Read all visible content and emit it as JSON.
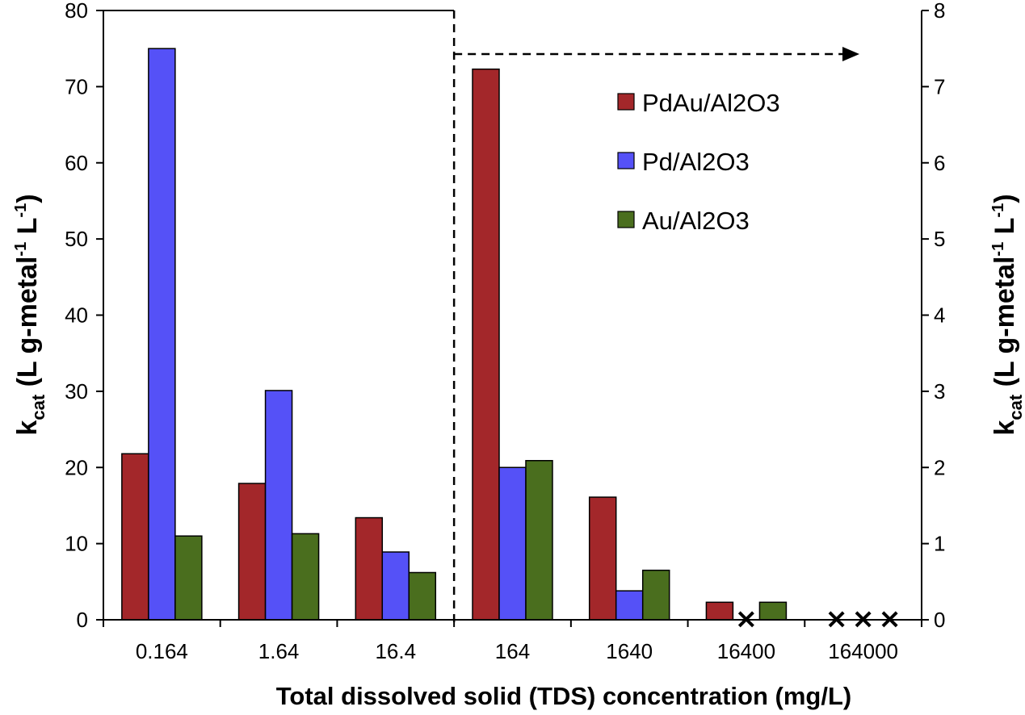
{
  "chart_data": {
    "type": "bar",
    "categories": [
      "0.164",
      "1.64",
      "16.4",
      "164",
      "1640",
      "16400",
      "164000"
    ],
    "series": [
      {
        "name": "PdAu/Al2O3",
        "color": "#A3272A",
        "values": [
          21.8,
          17.9,
          13.4,
          7.23,
          1.61,
          0.23,
          null
        ]
      },
      {
        "name": "Pd/Al2O3",
        "color": "#5551F7",
        "values": [
          75,
          30.1,
          8.9,
          2.0,
          0.38,
          null,
          null
        ]
      },
      {
        "name": "Au/Al2O3",
        "color": "#4A6E1E",
        "values": [
          11,
          11.3,
          6.2,
          2.09,
          0.65,
          0.23,
          null
        ]
      }
    ],
    "left_axis": {
      "ylim": [
        0,
        80
      ],
      "ticks": [
        "0",
        "10",
        "20",
        "30",
        "40",
        "50",
        "60",
        "70",
        "80"
      ],
      "applies_to_categories": [
        "0.164",
        "1.64",
        "16.4"
      ]
    },
    "right_axis": {
      "ylim": [
        0,
        8
      ],
      "ticks": [
        "0",
        "1",
        "2",
        "3",
        "4",
        "5",
        "6",
        "7",
        "8"
      ],
      "applies_to_categories": [
        "164",
        "1640",
        "16400",
        "164000"
      ]
    },
    "not_detected_markers": [
      {
        "category": "16400",
        "series": "Pd/Al2O3",
        "marker": "×"
      },
      {
        "category": "164000",
        "series": "PdAu/Al2O3",
        "marker": "×"
      },
      {
        "category": "164000",
        "series": "Pd/Al2O3",
        "marker": "×"
      },
      {
        "category": "164000",
        "series": "Au/Al2O3",
        "marker": "×"
      }
    ],
    "xlabel": "Total dissolved solid (TDS) concentration (mg/L)",
    "ylabel_main": "k",
    "ylabel_sub": "cat",
    "ylabel_unit": " (L g-metal",
    "ylabel_sup": "-1",
    "ylabel_tail": " L",
    "ylabel_sup2": "-1",
    "ylabel_close": ")",
    "legend_position": "upper-right",
    "grid": false
  }
}
